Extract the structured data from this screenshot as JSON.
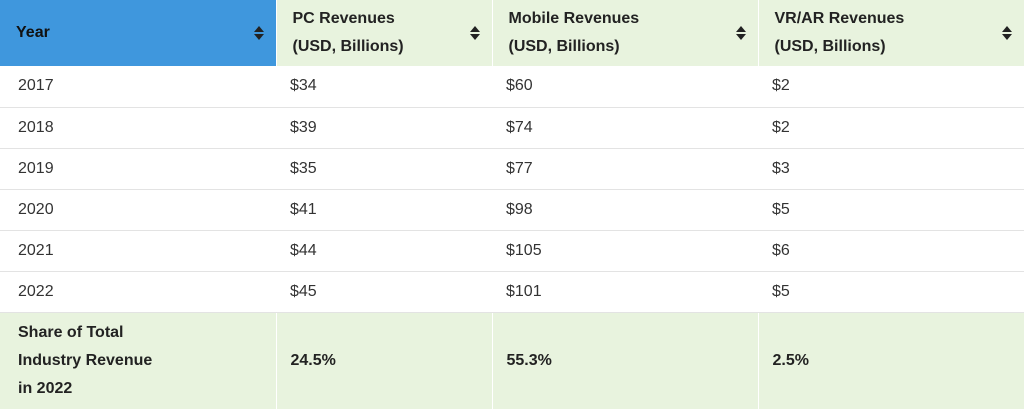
{
  "table": {
    "headers": [
      {
        "line1": "Year",
        "line2": ""
      },
      {
        "line1": "PC Revenues",
        "line2": "(USD, Billions)"
      },
      {
        "line1": "Mobile Revenues",
        "line2": "(USD, Billions)"
      },
      {
        "line1": "VR/AR Revenues",
        "line2": "(USD, Billions)"
      }
    ],
    "rows": [
      [
        "2017",
        "$34",
        "$60",
        "$2"
      ],
      [
        "2018",
        "$39",
        "$74",
        "$2"
      ],
      [
        "2019",
        "$35",
        "$77",
        "$3"
      ],
      [
        "2020",
        "$41",
        "$98",
        "$5"
      ],
      [
        "2021",
        "$44",
        "$105",
        "$6"
      ],
      [
        "2022",
        "$45",
        "$101",
        "$5"
      ]
    ],
    "footer": {
      "label_lines": [
        "Share of Total",
        "Industry Revenue",
        "in 2022"
      ],
      "values": [
        "24.5%",
        "55.3%",
        "2.5%"
      ]
    },
    "colors": {
      "active_header": "#3f97dd",
      "header_bg": "#e8f3de",
      "footer_bg": "#e8f3de"
    }
  }
}
